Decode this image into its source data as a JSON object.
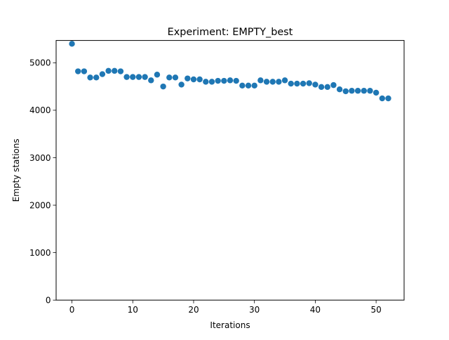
{
  "chart_data": {
    "type": "scatter",
    "title": "Experiment: EMPTY_best",
    "xlabel": "Iterations",
    "ylabel": "Empty stations",
    "xlim": [
      -2.6,
      54.6
    ],
    "ylim": [
      0,
      5470
    ],
    "xticks": [
      0,
      10,
      20,
      30,
      40,
      50
    ],
    "yticks": [
      0,
      1000,
      2000,
      3000,
      4000,
      5000
    ],
    "marker_color": "#1f77b4",
    "grid": false,
    "series": [
      {
        "x": [
          0,
          1,
          2,
          3,
          4,
          5,
          6,
          7,
          8,
          9,
          10,
          11,
          12,
          13,
          14,
          15,
          16,
          17,
          18,
          19,
          20,
          21,
          22,
          23,
          24,
          25,
          26,
          27,
          28,
          29,
          30,
          31,
          32,
          33,
          34,
          35,
          36,
          37,
          38,
          39,
          40,
          41,
          42,
          43,
          44,
          45,
          46,
          47,
          48,
          49,
          50,
          51,
          52
        ],
        "y": [
          5400,
          4820,
          4820,
          4690,
          4690,
          4760,
          4830,
          4830,
          4820,
          4700,
          4700,
          4700,
          4700,
          4630,
          4750,
          4500,
          4690,
          4690,
          4540,
          4670,
          4650,
          4650,
          4600,
          4600,
          4620,
          4620,
          4630,
          4620,
          4520,
          4520,
          4520,
          4630,
          4600,
          4600,
          4600,
          4630,
          4560,
          4560,
          4560,
          4570,
          4540,
          4490,
          4490,
          4530,
          4440,
          4400,
          4410,
          4410,
          4410,
          4410,
          4370,
          4250,
          4250
        ]
      }
    ]
  }
}
